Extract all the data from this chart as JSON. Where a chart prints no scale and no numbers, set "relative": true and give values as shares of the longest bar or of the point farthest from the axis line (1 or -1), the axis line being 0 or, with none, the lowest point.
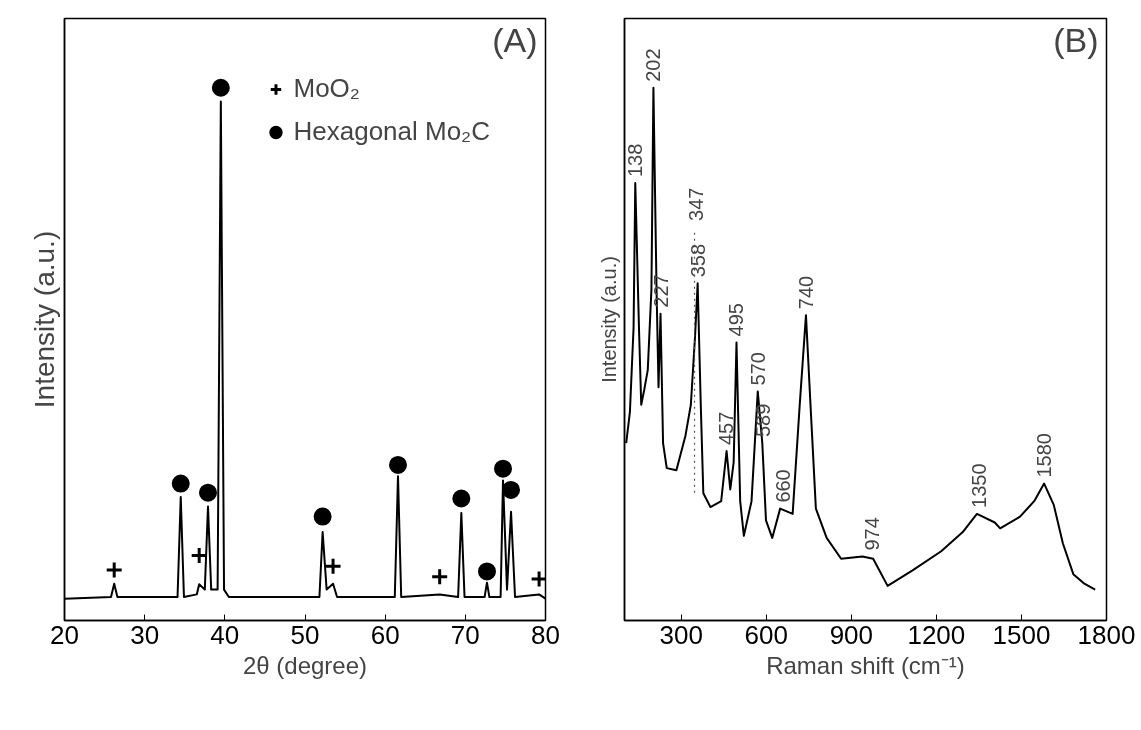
{
  "chart_data": [
    {
      "type": "line",
      "title": "(A)",
      "xlabel": "2θ (degree)",
      "ylabel": "Intensity (a.u.)",
      "relative": true,
      "xlim": [
        20,
        80
      ],
      "xticks": [
        20,
        30,
        40,
        50,
        60,
        70,
        80
      ],
      "grid": false,
      "legend": "top right",
      "series": [
        {
          "color": "#000000",
          "x": [
            20,
            25.8,
            26.2,
            26.6,
            34.1,
            34.5,
            34.9,
            36.5,
            36.8,
            37.5,
            37.9,
            38.3,
            39.1,
            39.5,
            39.9,
            40.5,
            51.8,
            52.2,
            52.7,
            53.5,
            54,
            61.2,
            61.6,
            62,
            66.8,
            69.1,
            69.5,
            69.9,
            72.4,
            72.7,
            73,
            74.4,
            74.7,
            75.2,
            75.7,
            76.2,
            79.2,
            80
          ],
          "values": [
            0.041,
            0.044,
            0.069,
            0.044,
            0.044,
            0.232,
            0.044,
            0.049,
            0.068,
            0.058,
            0.214,
            0.058,
            0.058,
            0.974,
            0.058,
            0.044,
            0.044,
            0.166,
            0.058,
            0.069,
            0.044,
            0.044,
            0.271,
            0.044,
            0.049,
            0.044,
            0.202,
            0.044,
            0.044,
            0.071,
            0.044,
            0.044,
            0.263,
            0.058,
            0.204,
            0.044,
            0.049,
            0.041
          ]
        },
        {
          "type": "scatter",
          "name": "MoO₂",
          "marker": "cross",
          "color": "#000000",
          "x": [
            26.2,
            36.8,
            53.5,
            66.8,
            79.2
          ],
          "values": [
            0.095,
            0.122,
            0.102,
            0.082,
            0.078
          ]
        },
        {
          "type": "scatter",
          "name": "Hexagonal Mo₂C",
          "marker": "circle",
          "color": "#000000",
          "x": [
            34.5,
            37.9,
            39.5,
            52.2,
            61.6,
            69.5,
            72.7,
            74.7,
            75.7
          ],
          "values": [
            0.257,
            0.24,
            1,
            0.195,
            0.292,
            0.229,
            0.092,
            0.285,
            0.245
          ]
        }
      ],
      "tick_labels": "x"
    },
    {
      "type": "line",
      "title": "(B)",
      "xlabel": "Raman shift (cm⁻¹)",
      "ylabel": "Intensity (a.u.)",
      "relative": true,
      "tick_labels": "x",
      "xlim": [
        100,
        1800
      ],
      "xticks": [
        300,
        600,
        900,
        1200,
        1500,
        1800
      ],
      "grid": false,
      "ref_lines": [
        {
          "axis": "x",
          "value": 347,
          "label": "347",
          "line_style": "dotted",
          "color": "#555555"
        }
      ],
      "series": [
        {
          "color": "#000000",
          "x": [
            106,
            119,
            132,
            138,
            151,
            159,
            170,
            182,
            195,
            202,
            213,
            220,
            227,
            236,
            249,
            283,
            315,
            334,
            349,
            358,
            369,
            378,
            403,
            441,
            460,
            473,
            485,
            495,
            508,
            521,
            548,
            570,
            586,
            599,
            621,
            649,
            693,
            718,
            740,
            756,
            775,
            813,
            864,
            939,
            977,
            1028,
            1116,
            1217,
            1293,
            1343,
            1406,
            1425,
            1495,
            1545,
            1580,
            1614,
            1646,
            1683,
            1722,
            1760
          ],
          "values": [
            0.333,
            0.391,
            0.55,
            0.821,
            0.55,
            0.405,
            0.434,
            0.47,
            0.622,
            1.0,
            0.622,
            0.438,
            0.576,
            0.333,
            0.286,
            0.282,
            0.347,
            0.405,
            0.535,
            0.633,
            0.405,
            0.239,
            0.213,
            0.224,
            0.318,
            0.246,
            0.297,
            0.522,
            0.224,
            0.159,
            0.224,
            0.43,
            0.333,
            0.188,
            0.155,
            0.21,
            0.2,
            0.405,
            0.573,
            0.405,
            0.21,
            0.155,
            0.116,
            0.12,
            0.116,
            0.065,
            0.094,
            0.13,
            0.166,
            0.2,
            0.184,
            0.173,
            0.195,
            0.224,
            0.257,
            0.217,
            0.145,
            0.087,
            0.069,
            0.058
          ]
        }
      ],
      "annotations": [
        {
          "text": "138",
          "x": 138,
          "y": 0.821
        },
        {
          "text": "202",
          "x": 202,
          "y": 1.0
        },
        {
          "text": "227",
          "x": 227,
          "y": 0.576
        },
        {
          "text": "358",
          "x": 358,
          "y": 0.633
        },
        {
          "text": "457",
          "x": 457,
          "y": 0.318
        },
        {
          "text": "495",
          "x": 495,
          "y": 0.522
        },
        {
          "text": "570",
          "x": 570,
          "y": 0.43
        },
        {
          "text": "589",
          "x": 589,
          "y": 0.333
        },
        {
          "text": "660",
          "x": 660,
          "y": 0.21
        },
        {
          "text": "740",
          "x": 740,
          "y": 0.573
        },
        {
          "text": "974",
          "x": 974,
          "y": 0.12
        },
        {
          "text": "1350",
          "x": 1350,
          "y": 0.2
        },
        {
          "text": "1580",
          "x": 1580,
          "y": 0.257
        }
      ]
    }
  ]
}
